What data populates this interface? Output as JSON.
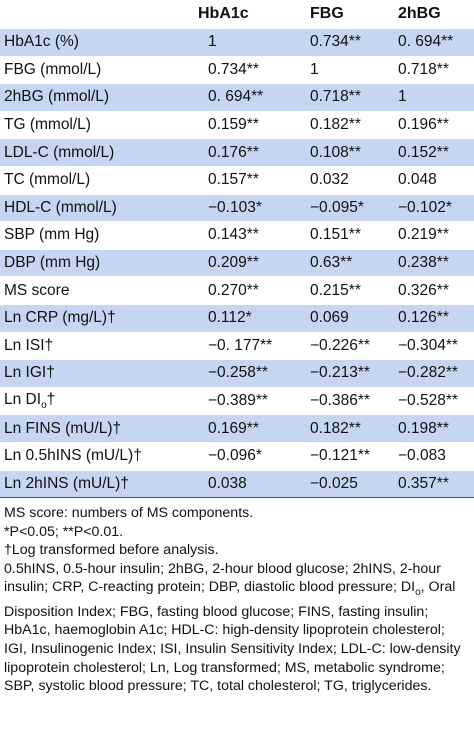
{
  "table": {
    "columns": [
      "",
      "HbA1c",
      "FBG",
      "2hBG"
    ],
    "rows": [
      {
        "label": "HbA1c (%)",
        "values": [
          "1",
          "0.734**",
          "0. 694**"
        ],
        "shade": true
      },
      {
        "label": "FBG (mmol/L)",
        "values": [
          "0.734**",
          "1",
          "0.718**"
        ],
        "shade": false
      },
      {
        "label": "2hBG (mmol/L)",
        "values": [
          "0. 694**",
          "0.718**",
          "1"
        ],
        "shade": true
      },
      {
        "label": "TG (mmol/L)",
        "values": [
          "0.159**",
          "0.182**",
          "0.196**"
        ],
        "shade": false
      },
      {
        "label": "LDL-C (mmol/L)",
        "values": [
          "0.176**",
          "0.108**",
          "0.152**"
        ],
        "shade": true
      },
      {
        "label": "TC (mmol/L)",
        "values": [
          "0.157**",
          "0.032",
          "0.048"
        ],
        "shade": false
      },
      {
        "label": "HDL-C (mmol/L)",
        "values": [
          "−0.103*",
          "−0.095*",
          "−0.102*"
        ],
        "shade": true
      },
      {
        "label": "SBP (mm Hg)",
        "values": [
          "0.143**",
          "0.151**",
          "0.219**"
        ],
        "shade": false
      },
      {
        "label": "DBP (mm Hg)",
        "values": [
          "0.209**",
          "0.63**",
          "0.238**"
        ],
        "shade": true
      },
      {
        "label": "MS score",
        "values": [
          "0.270**",
          "0.215**",
          "0.326**"
        ],
        "shade": false
      },
      {
        "label": "Ln CRP (mg/L)†",
        "values": [
          "0.112*",
          "0.069",
          "0.126**"
        ],
        "shade": true
      },
      {
        "label": "Ln ISI†",
        "values": [
          "−0. 177**",
          "−0.226**",
          "−0.304**"
        ],
        "shade": false
      },
      {
        "label": "Ln IGI†",
        "values": [
          "−0.258**",
          "−0.213**",
          "−0.282**"
        ],
        "shade": true
      },
      {
        "label": "Ln DI",
        "label_sub": "o",
        "label_suffix": "†",
        "values": [
          "−0.389**",
          "−0.386**",
          "−0.528**"
        ],
        "shade": false
      },
      {
        "label": "Ln FINS (mU/L)†",
        "values": [
          "0.169**",
          "0.182**",
          "0.198**"
        ],
        "shade": true
      },
      {
        "label": "Ln 0.5hINS (mU/L)†",
        "values": [
          "−0.096*",
          "−0.121**",
          "−0.083"
        ],
        "shade": false
      },
      {
        "label": "Ln 2hINS (mU/L)†",
        "values": [
          "0.038",
          "−0.025",
          "0.357**"
        ],
        "shade": true
      }
    ]
  },
  "notes": {
    "line1": "MS score: numbers of MS components.",
    "line2": "*P<0.05; **P<0.01.",
    "line3": "†Log transformed before analysis.",
    "abbrev_part1": "0.5hINS, 0.5-hour insulin; 2hBG, 2-hour blood glucose; 2hINS, 2-hour insulin; CRP, C-reacting protein; DBP, diastolic blood pressure; DI",
    "abbrev_sub": "o",
    "abbrev_part2": ", Oral Disposition Index; FBG, fasting blood glucose; FINS, fasting insulin; HbA1c, haemoglobin A1c; HDL-C: high-density lipoprotein cholesterol; IGI, Insulinogenic Index; ISI, Insulin Sensitivity Index; LDL-C: low-density lipoprotein cholesterol; Ln, Log transformed; MS, metabolic syndrome; SBP, systolic blood pressure; TC, total cholesterol; TG, triglycerides."
  }
}
